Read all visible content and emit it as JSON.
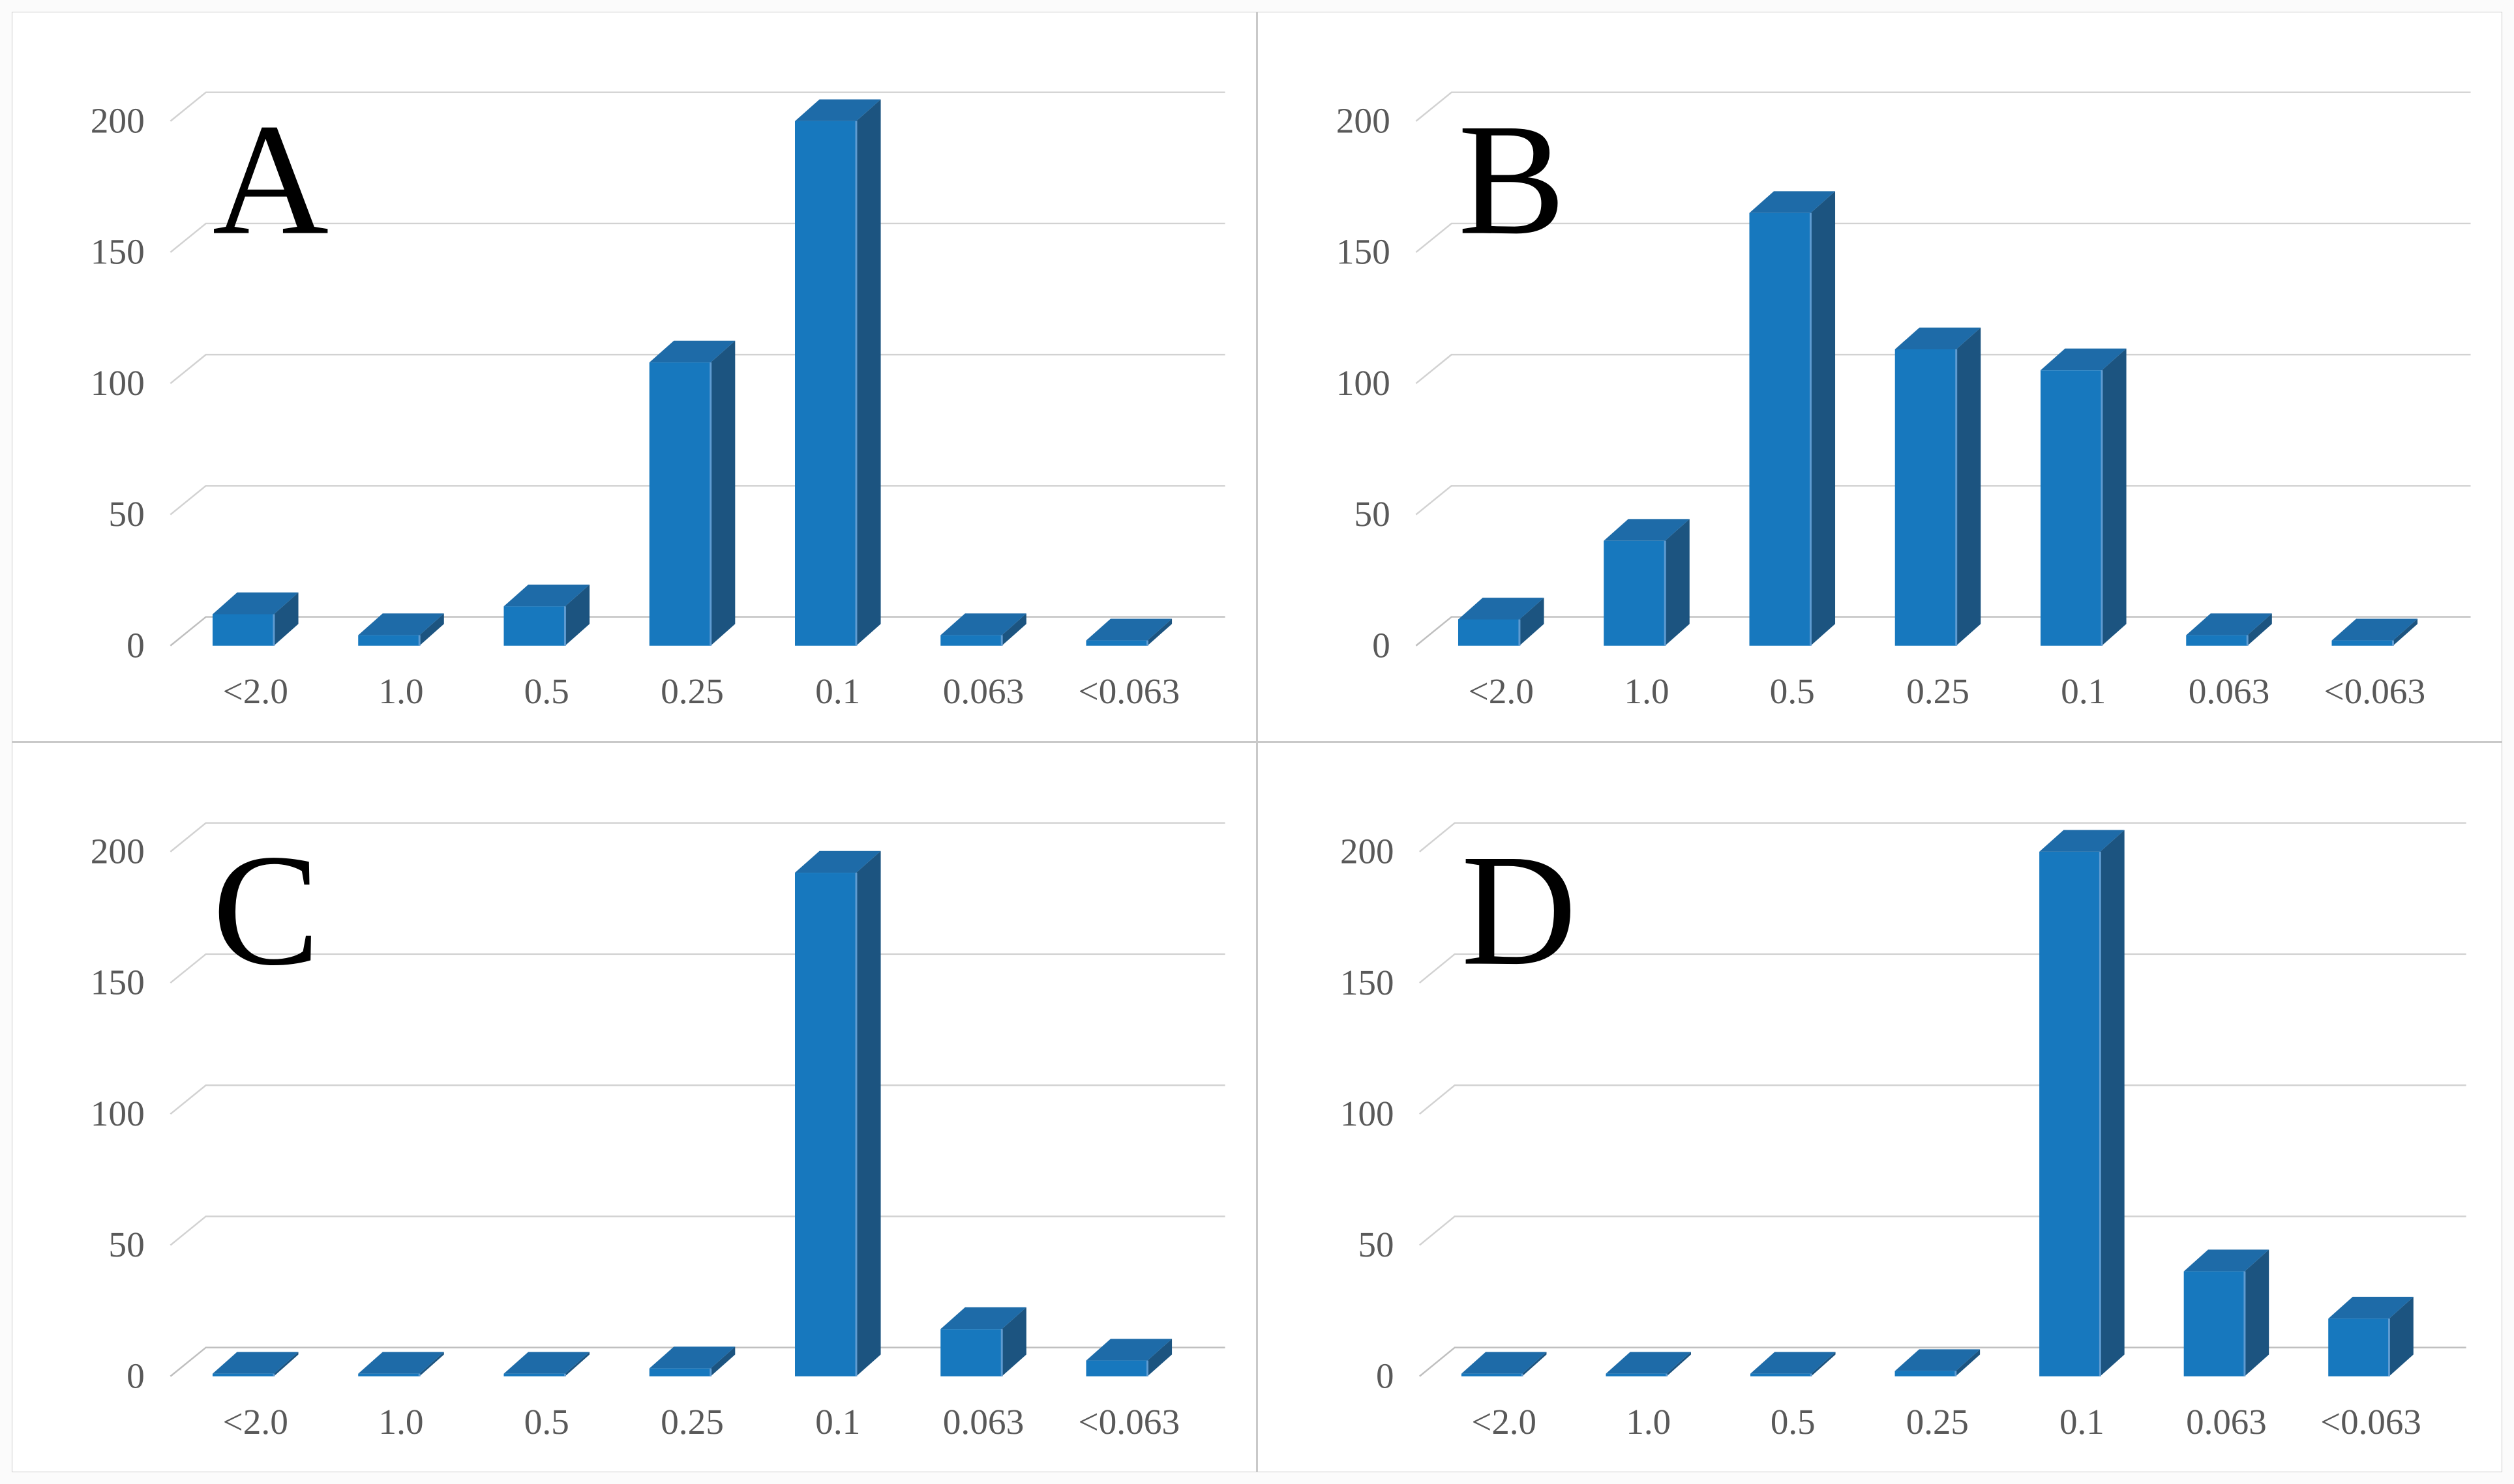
{
  "figure": {
    "description": "Four-panel 3D bar chart figure, panels A, B, C, D",
    "background_color": "#fbfbfb",
    "panel_background": "#ffffff",
    "divider_color": "#c9c9c9"
  },
  "colors": {
    "bar_front": "#1778BE",
    "bar_side": "#1C5480",
    "bar_top": "#1E6BA8",
    "bar_edge_highlight": "#5E9BD1",
    "gridline": "#D2D2D2",
    "axis_line": "#BFBFBF",
    "tick_label": "#595959",
    "panel_letter": "#000000"
  },
  "chart_data": [
    {
      "type": "bar",
      "panel_label": "A",
      "categories": [
        "<2.0",
        "1.0",
        "0.5",
        "0.25",
        "0.1",
        "0.063",
        "<0.063"
      ],
      "values": [
        12,
        4,
        15,
        108,
        200,
        4,
        2
      ],
      "title": "",
      "xlabel": "",
      "ylabel": "",
      "ylim": [
        0,
        200
      ],
      "yticks": [
        0,
        50,
        100,
        150,
        200
      ],
      "grid": true,
      "legend": false,
      "style": "3d-column"
    },
    {
      "type": "bar",
      "panel_label": "B",
      "categories": [
        "<2.0",
        "1.0",
        "0.5",
        "0.25",
        "0.1",
        "0.063",
        "<0.063"
      ],
      "values": [
        10,
        40,
        165,
        113,
        105,
        4,
        2
      ],
      "title": "",
      "xlabel": "",
      "ylabel": "",
      "ylim": [
        0,
        200
      ],
      "yticks": [
        0,
        50,
        100,
        150,
        200
      ],
      "grid": true,
      "legend": false,
      "style": "3d-column"
    },
    {
      "type": "bar",
      "panel_label": "C",
      "categories": [
        "<2.0",
        "1.0",
        "0.5",
        "0.25",
        "0.1",
        "0.063",
        "<0.063"
      ],
      "values": [
        1,
        1,
        1,
        3,
        192,
        18,
        6
      ],
      "title": "",
      "xlabel": "",
      "ylabel": "",
      "ylim": [
        0,
        200
      ],
      "yticks": [
        0,
        50,
        100,
        150,
        200
      ],
      "grid": true,
      "legend": false,
      "style": "3d-column"
    },
    {
      "type": "bar",
      "panel_label": "D",
      "categories": [
        "<2.0",
        "1.0",
        "0.5",
        "0.25",
        "0.1",
        "0.063",
        "<0.063"
      ],
      "values": [
        1,
        1,
        1,
        2,
        200,
        40,
        22
      ],
      "title": "",
      "xlabel": "",
      "ylabel": "",
      "ylim": [
        0,
        200
      ],
      "yticks": [
        0,
        50,
        100,
        150,
        200
      ],
      "grid": true,
      "legend": false,
      "style": "3d-column"
    }
  ]
}
